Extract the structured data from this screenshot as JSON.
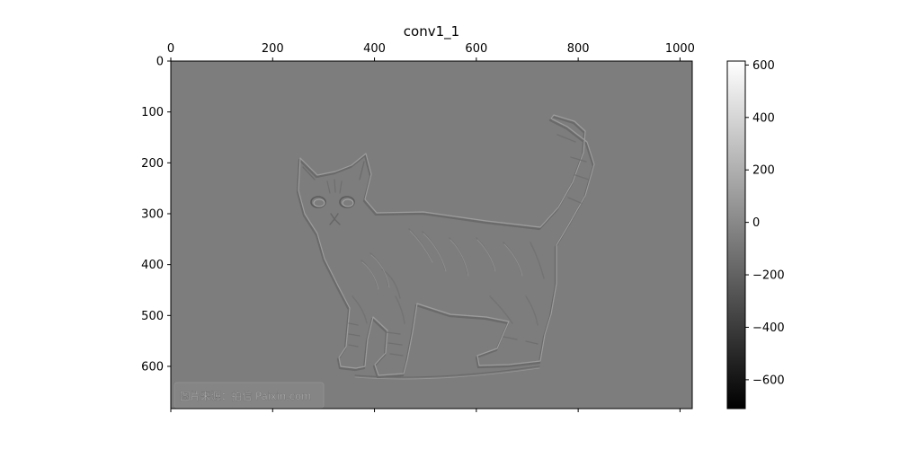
{
  "chart_data": {
    "type": "heatmap",
    "title": "conv1_1",
    "colormap": "gray",
    "x_axis": {
      "position": "top",
      "range": [
        0,
        1024
      ],
      "ticks": [
        0,
        200,
        400,
        600,
        800,
        1000
      ],
      "tick_labels": [
        "0",
        "200",
        "400",
        "600",
        "800",
        "1000"
      ]
    },
    "y_axis": {
      "inverted": true,
      "range": [
        0,
        683
      ],
      "ticks": [
        0,
        100,
        200,
        300,
        400,
        500,
        600
      ],
      "tick_labels": [
        "0",
        "100",
        "200",
        "300",
        "400",
        "500",
        "600"
      ]
    },
    "colorbar": {
      "range": [
        -710,
        615
      ],
      "ticks": [
        600,
        400,
        200,
        0,
        -200,
        -400,
        -600
      ],
      "tick_labels": [
        "600",
        "400",
        "200",
        "0",
        "−200",
        "−400",
        "−600"
      ]
    },
    "background_value": -60,
    "image_subject": "cat",
    "watermark": "图片来源：拍信 Paixin.com"
  }
}
